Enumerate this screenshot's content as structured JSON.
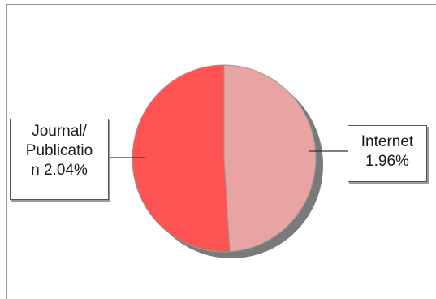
{
  "chart_data": {
    "type": "pie",
    "slices": [
      {
        "label": "Internet",
        "value": 1.96,
        "display": "Internet\n1.96%",
        "color": "#e8a3a3"
      },
      {
        "label": "Journal/ Publication",
        "value": 2.04,
        "display": "Journal/\nPublicatio\nn 2.04%",
        "color": "#ff5252"
      }
    ],
    "start_angle_deg": 0,
    "direction": "clockwise",
    "shadow_color": "#7a7a7a",
    "border_color": "#9a9a9a"
  }
}
